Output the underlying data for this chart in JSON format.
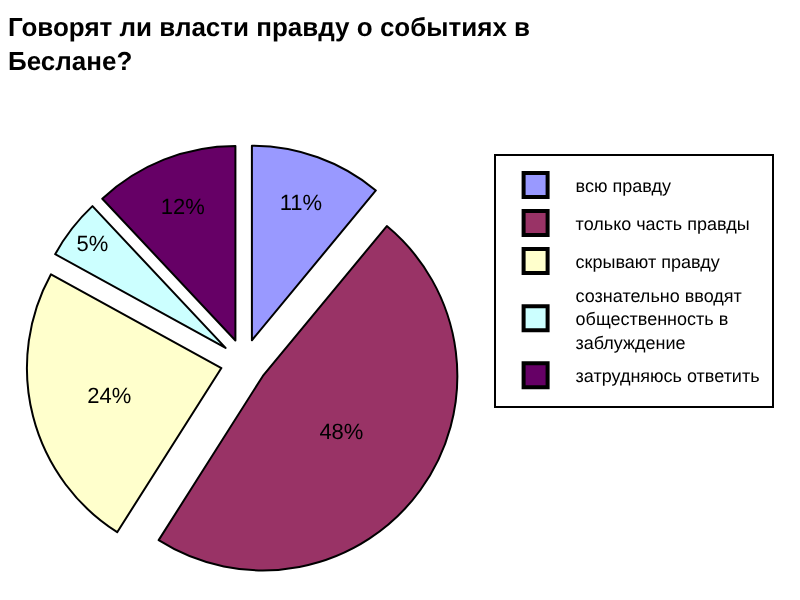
{
  "chart_data": {
    "type": "pie",
    "title": "Говорят ли власти правду о событиях в Беслане?",
    "categories": [
      "всю правду",
      "только часть правды",
      "скрывают правду",
      "сознательно вводят общественность в заблуждение",
      "затрудняюсь ответить"
    ],
    "values": [
      11,
      48,
      24,
      5,
      12
    ],
    "value_labels": [
      "11%",
      "48%",
      "24%",
      "5%",
      "12%"
    ],
    "colors": [
      "#9999ff",
      "#993366",
      "#ffffcc",
      "#ccffff",
      "#660066"
    ],
    "legend": "right"
  }
}
